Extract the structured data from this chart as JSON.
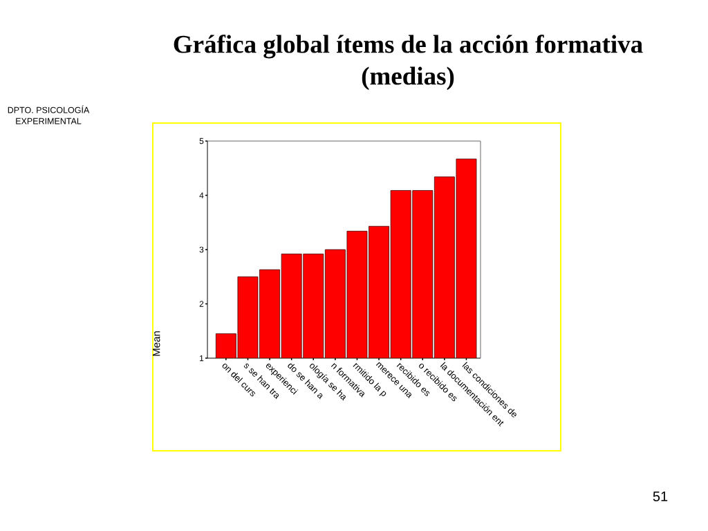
{
  "chart_data": {
    "type": "bar",
    "title": "Gráfica global ítems de la acción formativa (medias)",
    "ylabel": "Mean",
    "categories": [
      "on del curs",
      "s se han tra",
      "experienci",
      "do se han a",
      "ología se ha",
      "n formativa",
      "rmitido la p",
      "merece una",
      "recibido es",
      "o recibido es",
      "la documentación ent",
      "las condiciones de"
    ],
    "values": [
      1.45,
      2.5,
      2.63,
      2.92,
      2.92,
      3.0,
      3.34,
      3.43,
      4.09,
      4.09,
      4.34,
      4.67
    ],
    "color": "#ff0000",
    "ylim": [
      1,
      5
    ],
    "yticks": [
      1,
      2,
      3,
      4,
      5
    ],
    "annotations": [
      "DPTO. PSICOLOGÍA EXPERIMENTAL",
      "51"
    ]
  }
}
